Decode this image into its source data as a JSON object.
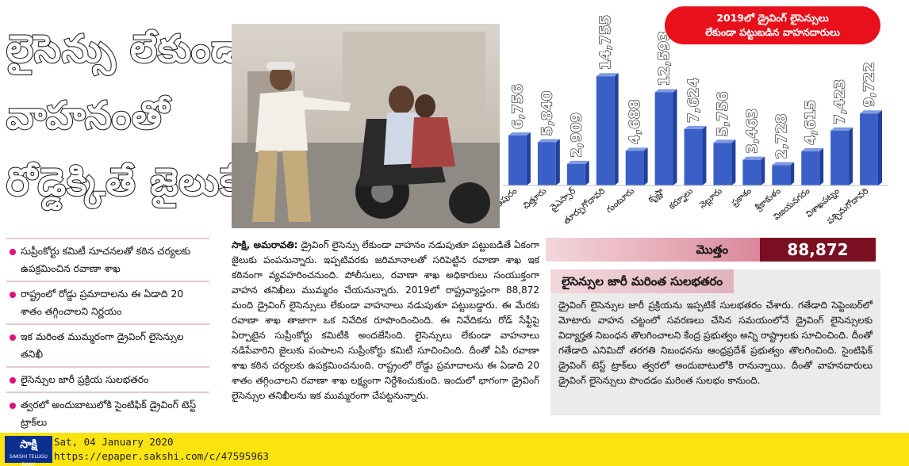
{
  "headline": {
    "line1": "లైసెన్సు లేకుండా",
    "line2": "వాహనంతో",
    "line3": "రోడ్డెక్కితే జైలుకే!"
  },
  "bullets": [
    "సుప్రీంకోర్టు కమిటీ సూచనలతో కఠిన చర్యలకు ఉపక్రమించిన రవాణా శాఖ",
    "రాష్ట్రంలో రోడ్డు ప్రమాదాలను ఈ ఏడాది 20 శాతం తగ్గించాలని నిర్ణయం",
    "ఇక మరింత ముమ్మరంగా డ్రైవింగ్ లైసెన్సుల తనిఖీ",
    "లైసెన్సుల జారీ ప్రక్రియ సులభతరం",
    "త్వరలో అందుబాటులోకి సైంటిఫిక్ డ్రైవింగ్ టెస్ట్ ట్రాక్‌లు"
  ],
  "article": {
    "dateline": "సాక్షి, అమరావతి:",
    "body": "డ్రైవింగ్ లైసెన్సు లేకుండా వాహనం నడుపుతూ పట్టుబడితే ఏకంగా జైలుకు పంపనున్నారు. ఇప్పటివరకు జరిమానాలతో సరిపెట్టిన రవాణా శాఖ ఇక కఠినంగా వ్యవహరించనుంది. పోలీసులు, రవాణా శాఖ అధికారులు సంయుక్తంగా వాహన తనిఖీలు ముమ్మరం చేయనున్నారు. 2019లో రాష్ట్రవ్యాప్తంగా 88,872 మంది డ్రైవింగ్ లైసెన్సులు లేకుండా వాహనాలు నడుపుతూ పట్టుబడ్డారు. ఈ మేరకు రవాణా శాఖ తాజాగా ఒక నివేదిక రూపొందించింది. ఈ నివేదికను రోడ్ సేఫ్టీపై ఏర్పాటైన సుప్రీంకోర్టు కమిటీకి అందజేసింది. లైసెన్సులు లేకుండా వాహనాలు నడిపేవారిని జైలుకు పంపాలని సుప్రీంకోర్టు కమిటీ సూచించింది. దీంతో ఏపీ రవాణా శాఖ కఠిన చర్యలకు ఉపక్రమించనుంది. రాష్ట్రంలో రోడ్డు ప్రమాదాలను ఈ ఏడాది 20 శాతం తగ్గించాలని రవాణా శాఖ లక్ష్యంగా నిర్దేశించుకుంది. ఇందులో భాగంగా డ్రైవింగ్ లైసెన్సుల తనిఖీలను ఇక ముమ్మరంగా చేపట్టనున్నారు."
  },
  "side_story": {
    "title": "లైసెన్సుల జారీ మరింత సులభతరం",
    "body": "డ్రైవింగ్ లైసెన్సుల జారీ ప్రక్రియను ఇప్పటికే సులభతరం చేశారు. గతేడాది సెప్టెంబర్‌లో మోటారు వాహన చట్టంలో సవరణలు చేసిన సమయంలోనే డ్రైవింగ్ లైసెన్సులకు విద్యార్హత నిబంధన తొలగించాలని కేంద్ర ప్రభుత్వం అన్ని రాష్ట్రాలకు సూచించింది. దీంతో గతేడాది ఎనిమిదో తరగతి నిబంధనను ఆంధ్రప్రదేశ్ ప్రభుత్వం తొలగించింది. సైంటిఫిక్ డ్రైవింగ్ టెస్ట్ ట్రాక్‌లు త్వరలో అందుబాటులోకి రానున్నాయి. దీంతో వాహనదారులు డ్రైవింగ్ లైసెన్సులు పొందడం మరింత సులభం కానుంది."
  },
  "chart_data": {
    "type": "bar",
    "title": "2019లో డ్రైవింగ్ లైసెన్సులు లేకుండా పట్టుబడిన వాహనదారులు",
    "title_line1": "2019లో డ్రైవింగ్ లైసెన్సులు",
    "title_line2": "లేకుండా పట్టుబడిన వాహనదారులు",
    "categories": [
      "అనంతపురం",
      "చిత్తూరు",
      "వైఎస్సార్",
      "తూర్పుగోదావరి",
      "గుంటూరు",
      "కృష్ణా",
      "కర్నూలు",
      "నెల్లూరు",
      "ప్రకాశం",
      "శ్రీకాకుళం",
      "విజయనగరం",
      "విశాఖపట్నం",
      "పశ్చిమగోదావరి"
    ],
    "values": [
      6756,
      5840,
      2909,
      14755,
      4688,
      12593,
      7624,
      5756,
      3463,
      2728,
      4615,
      7423,
      9722
    ],
    "value_labels": [
      "6,756",
      "5,840",
      "2,909",
      "14,755",
      "4,688",
      "12,593",
      "7,624",
      "5,756",
      "3,463",
      "2,728",
      "4,615",
      "7,423",
      "9,722"
    ],
    "total_label": "మొత్తం",
    "total_value": "88,872",
    "bar_color": "#3a60c8"
  },
  "footer": {
    "logo_text": "సాక్షి",
    "logo_sub": "SAKSHI TELUGU DAILY",
    "date": "Sat, 04 January 2020",
    "url": "https://epaper.sakshi.com/c/47595963"
  }
}
